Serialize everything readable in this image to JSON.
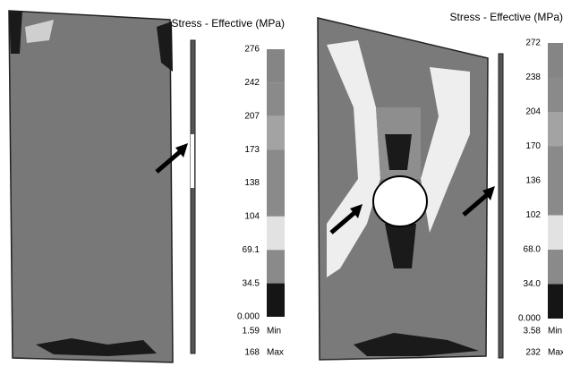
{
  "panels": [
    {
      "title": "Stress - Effective (MPa)",
      "scale_labels": [
        "276",
        "242",
        "207",
        "173",
        "138",
        "104",
        "69.1",
        "34.5",
        "0.000"
      ],
      "min_value": "1.59",
      "min_label": "Min",
      "max_value": "168",
      "max_label": "Max"
    },
    {
      "title": "Stress - Effective (MPa)",
      "scale_labels": [
        "272",
        "238",
        "204",
        "170",
        "136",
        "102",
        "68.0",
        "34.0",
        "0.000"
      ],
      "min_value": "3.58",
      "min_label": "Min",
      "max_value": "232",
      "max_label": "Max"
    }
  ]
}
